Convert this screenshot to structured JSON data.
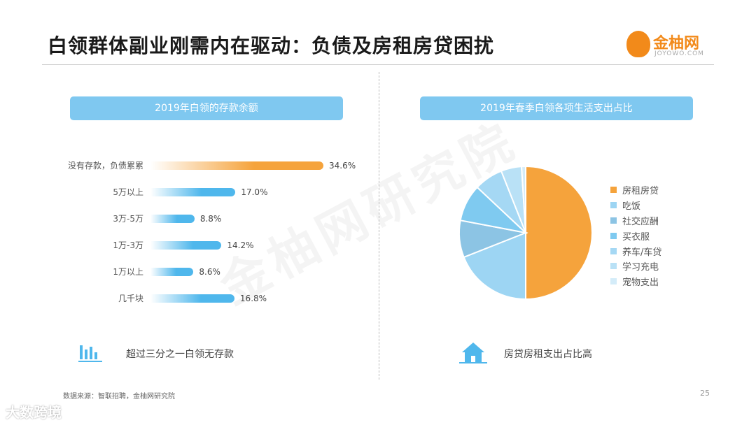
{
  "title": "白领群体副业刚需内在驱动：负债及房租房贷困扰",
  "logo": {
    "name": "金柚网",
    "domain": "JOYOWO.COM",
    "color": "#f28a1a"
  },
  "watermark": "金柚网研究院",
  "left": {
    "header": "2019年白领的存款余额",
    "bar_color": "#f5a33c",
    "bar_color_secondary": "#4fb7ec",
    "chart_data": {
      "type": "bar",
      "orientation": "horizontal",
      "categories": [
        "没有存款，负债累累",
        "5万以上",
        "3万-5万",
        "1万-3万",
        "1万以上",
        "几千块"
      ],
      "values": [
        34.6,
        17.0,
        8.8,
        14.2,
        8.6,
        16.8
      ],
      "labels": [
        "34.6%",
        "17.0%",
        "8.8%",
        "14.2%",
        "8.6%",
        "16.8%"
      ],
      "unit": "%"
    },
    "note": "超过三分之一白领无存款",
    "note_icon": "bar-chart-icon"
  },
  "right": {
    "header": "2019年春季白领各项生活支出占比",
    "chart_data": {
      "type": "pie",
      "legend_position": "right",
      "categories": [
        "房租房贷",
        "吃饭",
        "社交应酬",
        "买衣服",
        "养车/车贷",
        "学习充电",
        "宠物支出"
      ],
      "values": [
        50,
        19,
        9,
        9,
        7,
        5,
        1
      ],
      "colors": [
        "#f5a33c",
        "#9dd5f3",
        "#8cc4e4",
        "#7fcaf0",
        "#a5d8f4",
        "#b9e1f6",
        "#d4ecf9"
      ]
    },
    "note": "房贷房租支出占比高",
    "note_icon": "house-icon"
  },
  "source": "数据来源：智联招聘，金柚网研究院",
  "page": "25",
  "footer_brand": "大数跨境"
}
